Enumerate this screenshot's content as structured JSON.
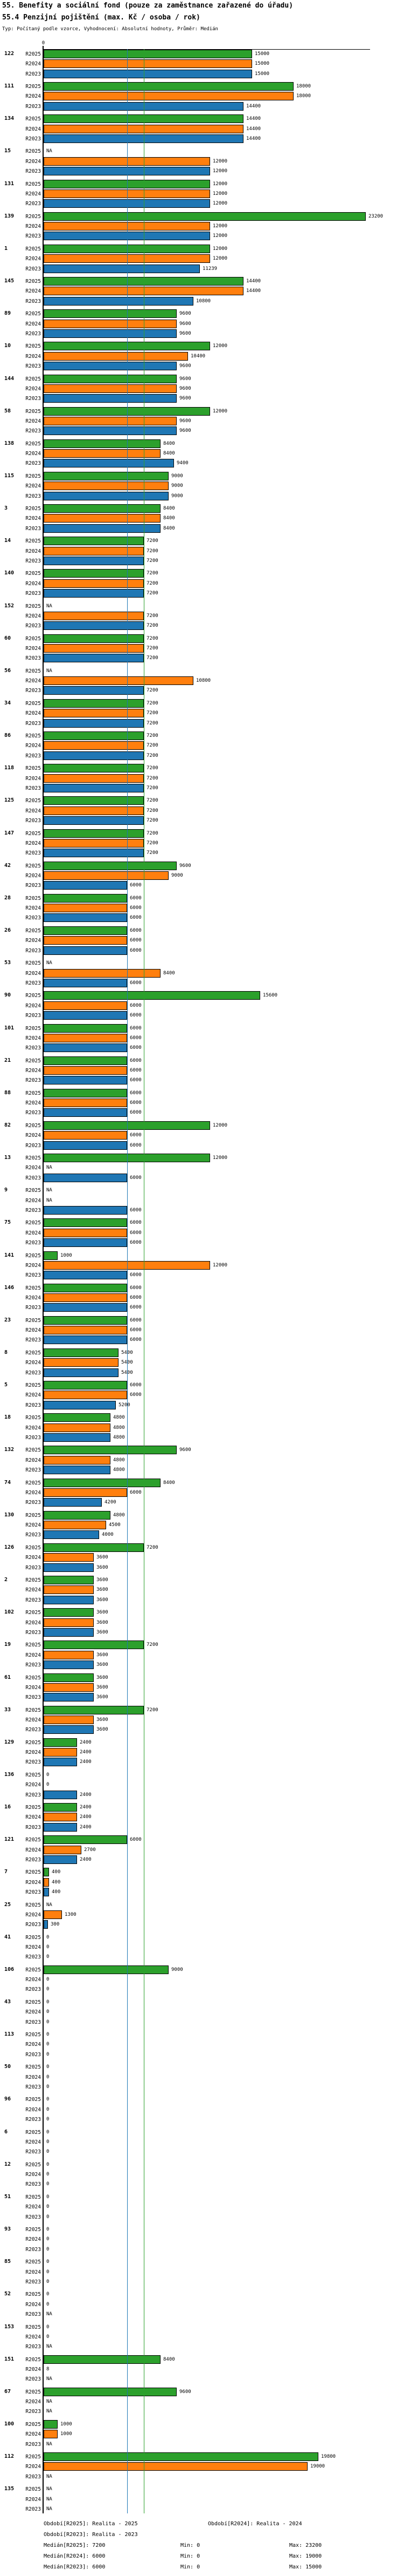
{
  "header": {
    "title_line1": "55. Benefity a sociální fond (pouze za zaměstnance zařazené do úřadu)",
    "title_line2": "55.4 Penzijní pojištění (max. Kč / osoba / rok)",
    "subtitle": "Typ: Počítaný podle vzorce, Vyhodnocení: Absolutní hodnoty, Průměr: Medián"
  },
  "chart_data": {
    "type": "bar",
    "orientation": "horizontal",
    "title": "55.4 Penzijní pojištění (max. Kč / osoba / rok)",
    "x_axis": {
      "tick_label": "0",
      "min": 0,
      "max": 23500,
      "grid": false
    },
    "na_text": "NA",
    "series_order": [
      "R2025",
      "R2024",
      "R2023"
    ],
    "series_colors": {
      "R2025": "#2ca02c",
      "R2024": "#ff7f0e",
      "R2023": "#1f77b4"
    },
    "reference_lines": [
      {
        "label": "Medián[R2025]",
        "value": 7200,
        "color": "#2ca02c"
      },
      {
        "label": "Medián[R2024]",
        "value": 6000,
        "color": "#ff7f0e"
      },
      {
        "label": "Medián[R2023]",
        "value": 6000,
        "color": "#1f77b4"
      }
    ],
    "groups": [
      {
        "id": "122",
        "values": [
          15000,
          15000,
          15000
        ]
      },
      {
        "id": "111",
        "values": [
          18000,
          18000,
          14400
        ]
      },
      {
        "id": "134",
        "values": [
          14400,
          14400,
          14400
        ]
      },
      {
        "id": "15",
        "values": [
          "NA",
          12000,
          12000
        ]
      },
      {
        "id": "131",
        "values": [
          12000,
          12000,
          12000
        ]
      },
      {
        "id": "139",
        "values": [
          23200,
          12000,
          12000
        ]
      },
      {
        "id": "1",
        "values": [
          12000,
          12000,
          11239
        ]
      },
      {
        "id": "145",
        "values": [
          14400,
          14400,
          10800
        ]
      },
      {
        "id": "89",
        "values": [
          9600,
          9600,
          9600
        ]
      },
      {
        "id": "10",
        "values": [
          12000,
          10400,
          9600
        ]
      },
      {
        "id": "144",
        "values": [
          9600,
          9600,
          9600
        ]
      },
      {
        "id": "58",
        "values": [
          12000,
          9600,
          9600
        ]
      },
      {
        "id": "138",
        "values": [
          8400,
          8400,
          9400
        ]
      },
      {
        "id": "115",
        "values": [
          9000,
          9000,
          9000
        ]
      },
      {
        "id": "3",
        "values": [
          8400,
          8400,
          8400
        ]
      },
      {
        "id": "14",
        "values": [
          7200,
          7200,
          7200
        ]
      },
      {
        "id": "140",
        "values": [
          7200,
          7200,
          7200
        ]
      },
      {
        "id": "152",
        "values": [
          "NA",
          7200,
          7200
        ]
      },
      {
        "id": "60",
        "values": [
          7200,
          7200,
          7200
        ]
      },
      {
        "id": "56",
        "values": [
          "NA",
          10800,
          7200
        ]
      },
      {
        "id": "34",
        "values": [
          7200,
          7200,
          7200
        ]
      },
      {
        "id": "86",
        "values": [
          7200,
          7200,
          7200
        ]
      },
      {
        "id": "118",
        "values": [
          7200,
          7200,
          7200
        ]
      },
      {
        "id": "125",
        "values": [
          7200,
          7200,
          7200
        ]
      },
      {
        "id": "147",
        "values": [
          7200,
          7200,
          7200
        ]
      },
      {
        "id": "42",
        "values": [
          9600,
          9000,
          6000
        ]
      },
      {
        "id": "28",
        "values": [
          6000,
          6000,
          6000
        ]
      },
      {
        "id": "26",
        "values": [
          6000,
          6000,
          6000
        ]
      },
      {
        "id": "53",
        "values": [
          "NA",
          8400,
          6000
        ]
      },
      {
        "id": "90",
        "values": [
          15600,
          6000,
          6000
        ]
      },
      {
        "id": "101",
        "values": [
          6000,
          6000,
          6000
        ]
      },
      {
        "id": "21",
        "values": [
          6000,
          6000,
          6000
        ]
      },
      {
        "id": "88",
        "values": [
          6000,
          6000,
          6000
        ]
      },
      {
        "id": "82",
        "values": [
          12000,
          6000,
          6000
        ]
      },
      {
        "id": "13",
        "values": [
          12000,
          "NA",
          6000
        ]
      },
      {
        "id": "9",
        "values": [
          "NA",
          "NA",
          6000
        ]
      },
      {
        "id": "75",
        "values": [
          6000,
          6000,
          6000
        ]
      },
      {
        "id": "141",
        "values": [
          1000,
          12000,
          6000
        ]
      },
      {
        "id": "146",
        "values": [
          6000,
          6000,
          6000
        ]
      },
      {
        "id": "23",
        "values": [
          6000,
          6000,
          6000
        ]
      },
      {
        "id": "8",
        "values": [
          5400,
          5400,
          5400
        ]
      },
      {
        "id": "5",
        "values": [
          6000,
          6000,
          5200
        ]
      },
      {
        "id": "18",
        "values": [
          4800,
          4800,
          4800
        ]
      },
      {
        "id": "132",
        "values": [
          9600,
          4800,
          4800
        ]
      },
      {
        "id": "74",
        "values": [
          8400,
          6000,
          4200
        ]
      },
      {
        "id": "130",
        "values": [
          4800,
          4500,
          4000
        ]
      },
      {
        "id": "126",
        "values": [
          7200,
          3600,
          3600
        ]
      },
      {
        "id": "2",
        "values": [
          3600,
          3600,
          3600
        ]
      },
      {
        "id": "102",
        "values": [
          3600,
          3600,
          3600
        ]
      },
      {
        "id": "19",
        "values": [
          7200,
          3600,
          3600
        ]
      },
      {
        "id": "61",
        "values": [
          3600,
          3600,
          3600
        ]
      },
      {
        "id": "33",
        "values": [
          7200,
          3600,
          3600
        ]
      },
      {
        "id": "129",
        "values": [
          2400,
          2400,
          2400
        ]
      },
      {
        "id": "136",
        "values": [
          0,
          0,
          2400
        ]
      },
      {
        "id": "16",
        "values": [
          2400,
          2400,
          2400
        ]
      },
      {
        "id": "121",
        "values": [
          6000,
          2700,
          2400
        ]
      },
      {
        "id": "7",
        "values": [
          400,
          400,
          400
        ]
      },
      {
        "id": "25",
        "values": [
          "NA",
          1300,
          300
        ]
      },
      {
        "id": "41",
        "values": [
          0,
          0,
          0
        ]
      },
      {
        "id": "106",
        "values": [
          9000,
          0,
          0
        ]
      },
      {
        "id": "43",
        "values": [
          0,
          0,
          0
        ]
      },
      {
        "id": "113",
        "values": [
          0,
          0,
          0
        ]
      },
      {
        "id": "50",
        "values": [
          0,
          0,
          0
        ]
      },
      {
        "id": "96",
        "values": [
          0,
          0,
          0
        ]
      },
      {
        "id": "6",
        "values": [
          0,
          0,
          0
        ]
      },
      {
        "id": "12",
        "values": [
          0,
          0,
          0
        ]
      },
      {
        "id": "51",
        "values": [
          0,
          0,
          0
        ]
      },
      {
        "id": "93",
        "values": [
          0,
          0,
          0
        ]
      },
      {
        "id": "85",
        "values": [
          0,
          0,
          0
        ]
      },
      {
        "id": "52",
        "values": [
          0,
          0,
          "NA"
        ]
      },
      {
        "id": "153",
        "values": [
          0,
          0,
          "NA"
        ]
      },
      {
        "id": "151",
        "values": [
          8400,
          8,
          "NA"
        ]
      },
      {
        "id": "67",
        "values": [
          9600,
          "NA",
          "NA"
        ]
      },
      {
        "id": "100",
        "values": [
          1000,
          1000,
          "NA"
        ]
      },
      {
        "id": "112",
        "values": [
          19800,
          19000,
          "NA"
        ]
      },
      {
        "id": "135",
        "values": [
          "NA",
          "NA",
          "NA"
        ]
      }
    ]
  },
  "legend": {
    "periods": [
      {
        "text": "Období[R2025]: Realita - 2025",
        "row": 0,
        "col": 0
      },
      {
        "text": "Období[R2024]: Realita - 2024",
        "row": 0,
        "col": 1
      },
      {
        "text": "Období[R2023]: Realita - 2023",
        "row": 1,
        "col": 0
      }
    ],
    "stats": [
      {
        "median": "Medián[R2025]: 7200",
        "min": "Min: 0",
        "max": "Max: 23200"
      },
      {
        "median": "Medián[R2024]: 6000",
        "min": "Min: 0",
        "max": "Max: 19000"
      },
      {
        "median": "Medián[R2023]: 6000",
        "min": "Min: 0",
        "max": "Max: 15000"
      }
    ]
  }
}
